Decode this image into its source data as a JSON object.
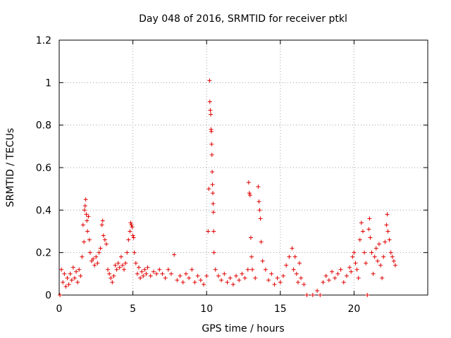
{
  "chart_data": {
    "type": "scatter",
    "title": "Day 048 of 2016, SRMTID for receiver ptkl",
    "xlabel": "GPS time / hours",
    "ylabel": "SRMTID / TECUs",
    "xlim": [
      0,
      25
    ],
    "ylim": [
      0,
      1.2
    ],
    "x_ticks": [
      0,
      5,
      10,
      15,
      20
    ],
    "x_tick_labels": [
      "0",
      "5",
      "10",
      "15",
      "20"
    ],
    "y_ticks": [
      0,
      0.2,
      0.4,
      0.6,
      0.8,
      1,
      1.2
    ],
    "y_tick_labels": [
      "0",
      "0.2",
      "0.4",
      "0.6",
      "0.8",
      "1",
      "1.2"
    ],
    "grid": true,
    "marker": "+",
    "color": "#e00000",
    "series": [
      {
        "name": "SRMTID",
        "points": [
          [
            0.05,
            0.0
          ],
          [
            0.15,
            0.12
          ],
          [
            0.25,
            0.06
          ],
          [
            0.35,
            0.1
          ],
          [
            0.45,
            0.04
          ],
          [
            0.55,
            0.08
          ],
          [
            0.65,
            0.05
          ],
          [
            0.75,
            0.1
          ],
          [
            0.85,
            0.07
          ],
          [
            0.95,
            0.13
          ],
          [
            1.05,
            0.08
          ],
          [
            1.15,
            0.11
          ],
          [
            1.25,
            0.06
          ],
          [
            1.35,
            0.12
          ],
          [
            1.45,
            0.09
          ],
          [
            1.55,
            0.18
          ],
          [
            1.62,
            0.33
          ],
          [
            1.68,
            0.25
          ],
          [
            1.72,
            0.4
          ],
          [
            1.76,
            0.42
          ],
          [
            1.8,
            0.45
          ],
          [
            1.84,
            0.38
          ],
          [
            1.88,
            0.35
          ],
          [
            1.92,
            0.3
          ],
          [
            1.98,
            0.37
          ],
          [
            2.05,
            0.26
          ],
          [
            2.1,
            0.2
          ],
          [
            2.2,
            0.16
          ],
          [
            2.3,
            0.17
          ],
          [
            2.4,
            0.14
          ],
          [
            2.5,
            0.18
          ],
          [
            2.6,
            0.15
          ],
          [
            2.7,
            0.2
          ],
          [
            2.8,
            0.22
          ],
          [
            2.9,
            0.33
          ],
          [
            2.95,
            0.35
          ],
          [
            3.0,
            0.28
          ],
          [
            3.1,
            0.26
          ],
          [
            3.2,
            0.24
          ],
          [
            3.3,
            0.12
          ],
          [
            3.4,
            0.1
          ],
          [
            3.5,
            0.08
          ],
          [
            3.6,
            0.06
          ],
          [
            3.7,
            0.09
          ],
          [
            3.8,
            0.14
          ],
          [
            3.9,
            0.12
          ],
          [
            4.0,
            0.15
          ],
          [
            4.1,
            0.13
          ],
          [
            4.2,
            0.18
          ],
          [
            4.3,
            0.14
          ],
          [
            4.4,
            0.12
          ],
          [
            4.5,
            0.15
          ],
          [
            4.6,
            0.2
          ],
          [
            4.7,
            0.26
          ],
          [
            4.8,
            0.3
          ],
          [
            4.85,
            0.34
          ],
          [
            4.9,
            0.33
          ],
          [
            4.95,
            0.32
          ],
          [
            5.0,
            0.28
          ],
          [
            5.05,
            0.27
          ],
          [
            5.1,
            0.2
          ],
          [
            5.2,
            0.15
          ],
          [
            5.3,
            0.1
          ],
          [
            5.4,
            0.13
          ],
          [
            5.5,
            0.08
          ],
          [
            5.6,
            0.11
          ],
          [
            5.7,
            0.09
          ],
          [
            5.8,
            0.12
          ],
          [
            5.9,
            0.1
          ],
          [
            6.0,
            0.13
          ],
          [
            6.2,
            0.09
          ],
          [
            6.4,
            0.11
          ],
          [
            6.6,
            0.1
          ],
          [
            6.8,
            0.12
          ],
          [
            7.0,
            0.1
          ],
          [
            7.2,
            0.08
          ],
          [
            7.4,
            0.12
          ],
          [
            7.6,
            0.1
          ],
          [
            7.8,
            0.19
          ],
          [
            8.0,
            0.07
          ],
          [
            8.2,
            0.09
          ],
          [
            8.4,
            0.06
          ],
          [
            8.6,
            0.1
          ],
          [
            8.8,
            0.08
          ],
          [
            9.0,
            0.12
          ],
          [
            9.2,
            0.06
          ],
          [
            9.4,
            0.09
          ],
          [
            9.6,
            0.07
          ],
          [
            9.8,
            0.05
          ],
          [
            10.0,
            0.09
          ],
          [
            10.1,
            0.3
          ],
          [
            10.15,
            0.5
          ],
          [
            10.2,
            1.01
          ],
          [
            10.22,
            0.91
          ],
          [
            10.25,
            0.87
          ],
          [
            10.28,
            0.85
          ],
          [
            10.3,
            0.78
          ],
          [
            10.32,
            0.77
          ],
          [
            10.34,
            0.71
          ],
          [
            10.36,
            0.66
          ],
          [
            10.38,
            0.58
          ],
          [
            10.4,
            0.52
          ],
          [
            10.42,
            0.48
          ],
          [
            10.44,
            0.43
          ],
          [
            10.46,
            0.39
          ],
          [
            10.48,
            0.3
          ],
          [
            10.5,
            0.2
          ],
          [
            10.6,
            0.12
          ],
          [
            10.8,
            0.09
          ],
          [
            11.0,
            0.07
          ],
          [
            11.2,
            0.1
          ],
          [
            11.4,
            0.06
          ],
          [
            11.6,
            0.08
          ],
          [
            11.8,
            0.05
          ],
          [
            12.0,
            0.09
          ],
          [
            12.2,
            0.07
          ],
          [
            12.4,
            0.1
          ],
          [
            12.6,
            0.08
          ],
          [
            12.8,
            0.12
          ],
          [
            12.85,
            0.53
          ],
          [
            12.9,
            0.48
          ],
          [
            12.95,
            0.47
          ],
          [
            13.0,
            0.27
          ],
          [
            13.05,
            0.18
          ],
          [
            13.1,
            0.12
          ],
          [
            13.3,
            0.08
          ],
          [
            13.5,
            0.51
          ],
          [
            13.55,
            0.44
          ],
          [
            13.6,
            0.4
          ],
          [
            13.65,
            0.36
          ],
          [
            13.7,
            0.25
          ],
          [
            13.8,
            0.16
          ],
          [
            14.0,
            0.12
          ],
          [
            14.2,
            0.07
          ],
          [
            14.4,
            0.1
          ],
          [
            14.6,
            0.05
          ],
          [
            14.8,
            0.08
          ],
          [
            15.0,
            0.06
          ],
          [
            15.2,
            0.09
          ],
          [
            15.4,
            0.14
          ],
          [
            15.6,
            0.18
          ],
          [
            15.8,
            0.22
          ],
          [
            15.9,
            0.12
          ],
          [
            16.0,
            0.18
          ],
          [
            16.1,
            0.1
          ],
          [
            16.2,
            0.06
          ],
          [
            16.3,
            0.15
          ],
          [
            16.4,
            0.08
          ],
          [
            16.6,
            0.05
          ],
          [
            16.8,
            0.0
          ],
          [
            17.2,
            0.0
          ],
          [
            17.5,
            0.02
          ],
          [
            17.7,
            0.0
          ],
          [
            17.9,
            0.06
          ],
          [
            18.1,
            0.09
          ],
          [
            18.3,
            0.07
          ],
          [
            18.5,
            0.11
          ],
          [
            18.7,
            0.08
          ],
          [
            18.9,
            0.1
          ],
          [
            19.1,
            0.12
          ],
          [
            19.3,
            0.06
          ],
          [
            19.5,
            0.09
          ],
          [
            19.7,
            0.13
          ],
          [
            19.8,
            0.11
          ],
          [
            19.9,
            0.18
          ],
          [
            20.0,
            0.2
          ],
          [
            20.1,
            0.15
          ],
          [
            20.2,
            0.12
          ],
          [
            20.3,
            0.08
          ],
          [
            20.4,
            0.26
          ],
          [
            20.5,
            0.34
          ],
          [
            20.6,
            0.3
          ],
          [
            20.7,
            0.2
          ],
          [
            20.8,
            0.15
          ],
          [
            20.9,
            0.0
          ],
          [
            21.0,
            0.31
          ],
          [
            21.05,
            0.36
          ],
          [
            21.1,
            0.27
          ],
          [
            21.2,
            0.2
          ],
          [
            21.3,
            0.1
          ],
          [
            21.4,
            0.18
          ],
          [
            21.5,
            0.22
          ],
          [
            21.6,
            0.16
          ],
          [
            21.7,
            0.24
          ],
          [
            21.8,
            0.14
          ],
          [
            21.9,
            0.08
          ],
          [
            22.0,
            0.18
          ],
          [
            22.1,
            0.25
          ],
          [
            22.2,
            0.33
          ],
          [
            22.25,
            0.38
          ],
          [
            22.3,
            0.3
          ],
          [
            22.4,
            0.26
          ],
          [
            22.5,
            0.2
          ],
          [
            22.6,
            0.18
          ],
          [
            22.7,
            0.16
          ],
          [
            22.8,
            0.14
          ]
        ]
      }
    ]
  }
}
